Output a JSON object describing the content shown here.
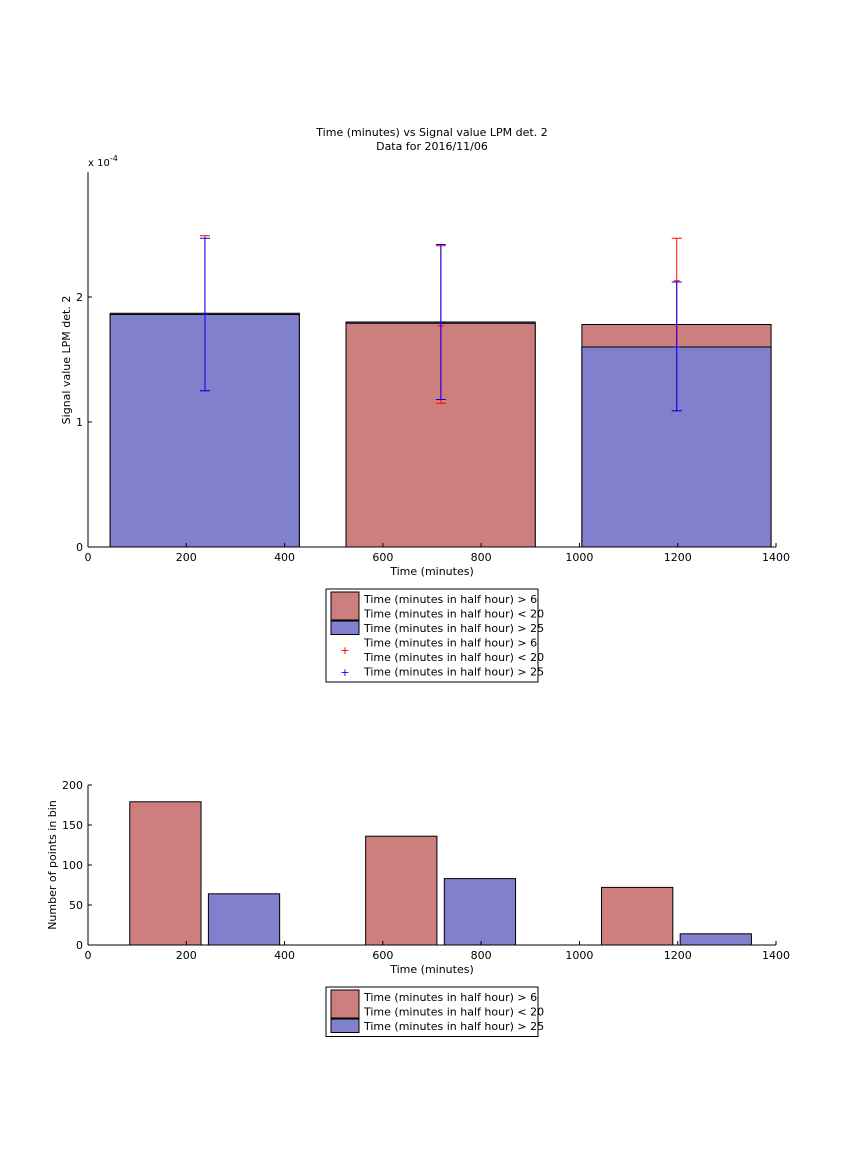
{
  "colors": {
    "series_a": "#cc7f7e",
    "series_b": "#8080cc",
    "err_a": "#ff0000",
    "err_b": "#0000ff",
    "axis": "#000000"
  },
  "chart_data": [
    {
      "type": "bar",
      "title": "Time (minutes) vs Signal value LPM det. 2",
      "subtitle": "Data for 2016/11/06",
      "xlabel": "Time (minutes)",
      "ylabel": "Signal value LPM det. 2",
      "yexponent": "x 10",
      "yexponent_power": "-4",
      "xlim": [
        0,
        1400
      ],
      "ylim": [
        0,
        3
      ],
      "xticks": [
        0,
        200,
        400,
        600,
        800,
        1000,
        1200,
        1400
      ],
      "yticks": [
        0,
        1,
        2
      ],
      "xtick_labels": [
        "0",
        "200",
        "400",
        "600",
        "800",
        "1000",
        "1200",
        "1400"
      ],
      "ytick_labels": [
        "0",
        "1",
        "2"
      ],
      "grid": false,
      "bars": [
        {
          "x0": 45,
          "x1": 430,
          "value_a": 1.87,
          "value_b": 1.86
        },
        {
          "x0": 525,
          "x1": 910,
          "value_a": 1.79,
          "value_b": 1.8
        },
        {
          "x0": 1005,
          "x1": 1390,
          "value_a": 1.78,
          "value_b": 1.6
        }
      ],
      "errorbars": [
        {
          "x": 238,
          "series": "a",
          "mean": 1.86,
          "low": 1.25,
          "high": 2.49
        },
        {
          "x": 238,
          "series": "b",
          "mean": 1.86,
          "low": 1.25,
          "high": 2.47
        },
        {
          "x": 718,
          "series": "a",
          "mean": 1.77,
          "low": 1.15,
          "high": 2.41
        },
        {
          "x": 718,
          "series": "b",
          "mean": 1.79,
          "low": 1.18,
          "high": 2.42
        },
        {
          "x": 1198,
          "series": "a",
          "mean": 2.13,
          "low": 1.09,
          "high": 2.47
        },
        {
          "x": 1198,
          "series": "b",
          "mean": 1.6,
          "low": 1.09,
          "high": 2.12
        }
      ],
      "legend": {
        "placement": "below",
        "entries": [
          {
            "kind": "patch",
            "series": "a",
            "lines": [
              "Time (minutes in half hour) > 6",
              "Time (minutes in half hour) < 20"
            ]
          },
          {
            "kind": "patch",
            "series": "b",
            "lines": [
              "Time (minutes in half hour) > 25"
            ]
          },
          {
            "kind": "marker",
            "series": "a",
            "lines": [
              "Time (minutes in half hour) > 6",
              "Time (minutes in half hour) < 20"
            ]
          },
          {
            "kind": "marker",
            "series": "b",
            "lines": [
              "Time (minutes in half hour) > 25"
            ]
          }
        ]
      }
    },
    {
      "type": "bar",
      "title": "",
      "xlabel": "Time (minutes)",
      "ylabel": "Number of points in bin",
      "xlim": [
        0,
        1400
      ],
      "ylim": [
        0,
        200
      ],
      "xticks": [
        0,
        200,
        400,
        600,
        800,
        1000,
        1200,
        1400
      ],
      "yticks": [
        0,
        50,
        100,
        150,
        200
      ],
      "xtick_labels": [
        "0",
        "200",
        "400",
        "600",
        "800",
        "1000",
        "1200",
        "1400"
      ],
      "ytick_labels": [
        "0",
        "50",
        "100",
        "150",
        "200"
      ],
      "grid": false,
      "bars": [
        {
          "series": "a",
          "x0": 85,
          "x1": 230,
          "value": 179
        },
        {
          "series": "b",
          "x0": 245,
          "x1": 390,
          "value": 64
        },
        {
          "series": "a",
          "x0": 565,
          "x1": 710,
          "value": 136
        },
        {
          "series": "b",
          "x0": 725,
          "x1": 870,
          "value": 83
        },
        {
          "series": "a",
          "x0": 1045,
          "x1": 1190,
          "value": 72
        },
        {
          "series": "b",
          "x0": 1205,
          "x1": 1350,
          "value": 14
        }
      ],
      "legend": {
        "placement": "below",
        "entries": [
          {
            "kind": "patch",
            "series": "a",
            "lines": [
              "Time (minutes in half hour) > 6",
              "Time (minutes in half hour) < 20"
            ]
          },
          {
            "kind": "patch",
            "series": "b",
            "lines": [
              "Time (minutes in half hour) > 25"
            ]
          }
        ]
      }
    }
  ]
}
